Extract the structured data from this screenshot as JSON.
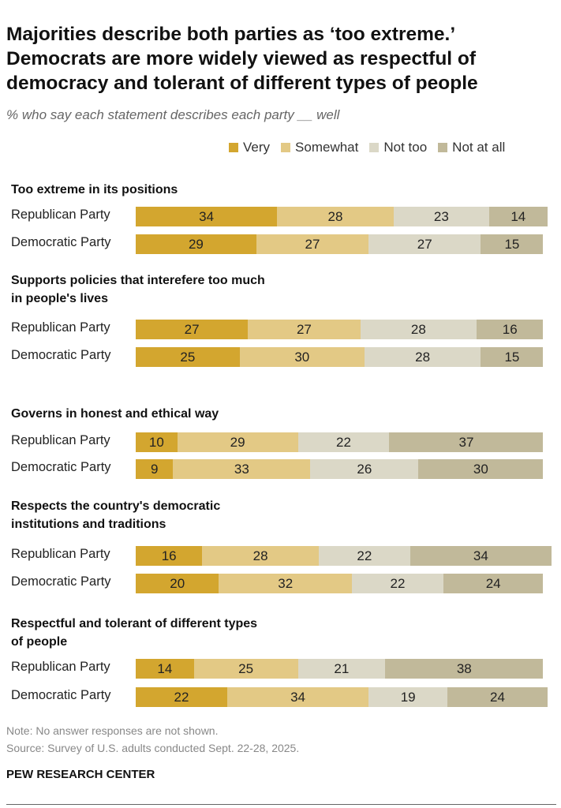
{
  "title": "Majorities describe both parties as ‘too extreme.’ Democrats are more widely viewed as respectful of democracy and tolerant of different types of people",
  "subtitle": "% who say each statement describes each party __ well",
  "colors": {
    "Very": "#D3A62F",
    "Somewhat": "#E3C985",
    "Not too": "#DBD8C7",
    "Not at all": "#C1B99A"
  },
  "chart_data": {
    "type": "bar",
    "orientation": "horizontal-stacked",
    "legend": [
      "Very",
      "Somewhat",
      "Not too",
      "Not at all"
    ],
    "legend_placement": "top",
    "groups": [
      {
        "heading": "Too extreme in its positions",
        "rows": [
          {
            "label": "Republican Party",
            "values": [
              34,
              28,
              23,
              14
            ]
          },
          {
            "label": "Democratic Party",
            "values": [
              29,
              27,
              27,
              15
            ]
          }
        ]
      },
      {
        "heading": "Supports policies that interefere too much in people's lives",
        "rows": [
          {
            "label": "Republican Party",
            "values": [
              27,
              27,
              28,
              16
            ]
          },
          {
            "label": "Democratic Party",
            "values": [
              25,
              30,
              28,
              15
            ]
          }
        ]
      },
      {
        "heading": "Governs in honest and ethical way",
        "rows": [
          {
            "label": "Republican Party",
            "values": [
              10,
              29,
              22,
              37
            ]
          },
          {
            "label": "Democratic Party",
            "values": [
              9,
              33,
              26,
              30
            ]
          }
        ]
      },
      {
        "heading": "Respects the country's democratic institutions and traditions",
        "rows": [
          {
            "label": "Republican Party",
            "values": [
              16,
              28,
              22,
              34
            ]
          },
          {
            "label": "Democratic Party",
            "values": [
              20,
              32,
              22,
              24
            ]
          }
        ]
      },
      {
        "heading": "Respectful and tolerant of different types of people",
        "rows": [
          {
            "label": "Republican Party",
            "values": [
              14,
              25,
              21,
              38
            ]
          },
          {
            "label": "Democratic Party",
            "values": [
              22,
              34,
              19,
              24
            ]
          }
        ]
      }
    ]
  },
  "note": "Note: No answer responses are not shown.",
  "source": "Source: Survey of U.S. adults conducted Sept. 22-28, 2025.",
  "brand": "PEW RESEARCH CENTER"
}
